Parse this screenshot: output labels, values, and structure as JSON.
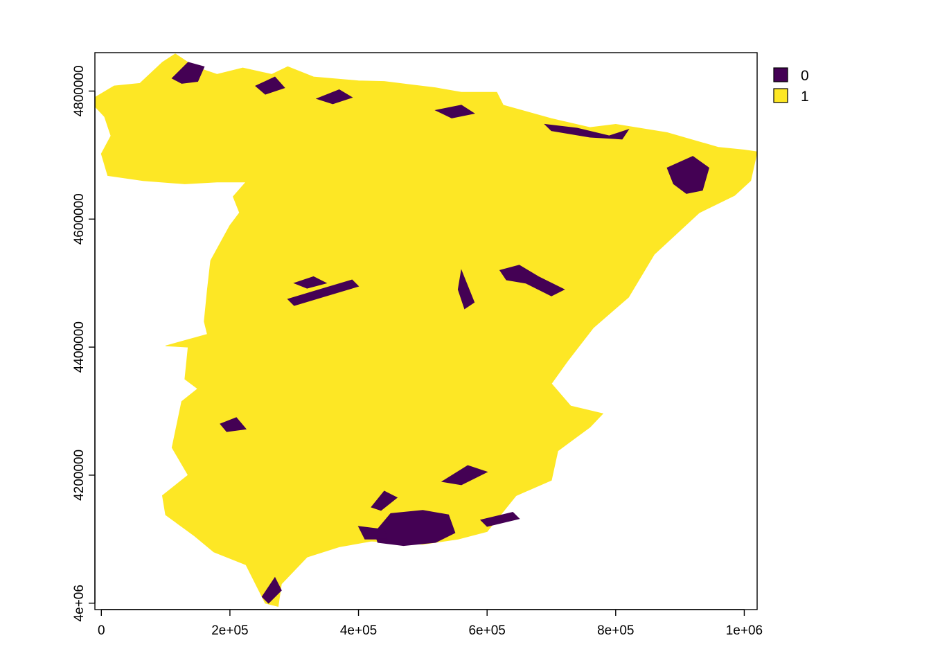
{
  "chart_data": {
    "type": "heatmap",
    "map_type": "binary-raster",
    "region": "Spain",
    "title": "",
    "xlabel": "",
    "ylabel": "",
    "xlim": [
      -10000,
      1020000
    ],
    "ylim": [
      3990000,
      4860000
    ],
    "grid": false,
    "legend_placement": "right",
    "x_ticks": [
      {
        "value": 0,
        "label": "0"
      },
      {
        "value": 200000,
        "label": "2e+05"
      },
      {
        "value": 400000,
        "label": "4e+05"
      },
      {
        "value": 600000,
        "label": "6e+05"
      },
      {
        "value": 800000,
        "label": "8e+05"
      },
      {
        "value": 1000000,
        "label": "1e+06"
      }
    ],
    "y_ticks": [
      {
        "value": 4000000,
        "label": "4e+06"
      },
      {
        "value": 4200000,
        "label": "4200000"
      },
      {
        "value": 4400000,
        "label": "4400000"
      },
      {
        "value": 4600000,
        "label": "4600000"
      },
      {
        "value": 4800000,
        "label": "4800000"
      }
    ],
    "legend": [
      {
        "label": "0",
        "color": "#440154"
      },
      {
        "label": "1",
        "color": "#fde725"
      }
    ],
    "land_outline": [
      [
        -10000,
        4790000
      ],
      [
        20000,
        4808000
      ],
      [
        60000,
        4812000
      ],
      [
        95000,
        4845000
      ],
      [
        115000,
        4858000
      ],
      [
        145000,
        4838000
      ],
      [
        180000,
        4826000
      ],
      [
        220000,
        4836000
      ],
      [
        265000,
        4826000
      ],
      [
        290000,
        4838000
      ],
      [
        330000,
        4822000
      ],
      [
        400000,
        4816000
      ],
      [
        440000,
        4815000
      ],
      [
        480000,
        4810000
      ],
      [
        520000,
        4805000
      ],
      [
        560000,
        4798000
      ],
      [
        615000,
        4798000
      ],
      [
        625000,
        4778000
      ],
      [
        700000,
        4757000
      ],
      [
        760000,
        4743000
      ],
      [
        800000,
        4748000
      ],
      [
        880000,
        4735000
      ],
      [
        915000,
        4725000
      ],
      [
        960000,
        4712000
      ],
      [
        1000000,
        4708000
      ],
      [
        1020000,
        4705000
      ],
      [
        1010000,
        4660000
      ],
      [
        985000,
        4637000
      ],
      [
        930000,
        4610000
      ],
      [
        860000,
        4545000
      ],
      [
        820000,
        4478000
      ],
      [
        765000,
        4430000
      ],
      [
        725000,
        4378000
      ],
      [
        700000,
        4343000
      ],
      [
        730000,
        4308000
      ],
      [
        780000,
        4296000
      ],
      [
        760000,
        4275000
      ],
      [
        710000,
        4238000
      ],
      [
        700000,
        4192000
      ],
      [
        645000,
        4168000
      ],
      [
        600000,
        4112000
      ],
      [
        555000,
        4100000
      ],
      [
        500000,
        4092000
      ],
      [
        420000,
        4097000
      ],
      [
        370000,
        4088000
      ],
      [
        320000,
        4072000
      ],
      [
        280000,
        4030000
      ],
      [
        275000,
        3995000
      ],
      [
        255000,
        4000000
      ],
      [
        225000,
        4060000
      ],
      [
        175000,
        4080000
      ],
      [
        145000,
        4105000
      ],
      [
        100000,
        4138000
      ],
      [
        95000,
        4168000
      ],
      [
        135000,
        4200000
      ],
      [
        110000,
        4243000
      ],
      [
        125000,
        4315000
      ],
      [
        150000,
        4335000
      ],
      [
        130000,
        4350000
      ],
      [
        135000,
        4400000
      ],
      [
        100000,
        4402000
      ],
      [
        165000,
        4420000
      ],
      [
        160000,
        4440000
      ],
      [
        165000,
        4490000
      ],
      [
        170000,
        4535000
      ],
      [
        200000,
        4590000
      ],
      [
        215000,
        4610000
      ],
      [
        205000,
        4635000
      ],
      [
        225000,
        4658000
      ],
      [
        180000,
        4658000
      ],
      [
        130000,
        4655000
      ],
      [
        65000,
        4660000
      ],
      [
        10000,
        4668000
      ],
      [
        0,
        4702000
      ],
      [
        15000,
        4730000
      ],
      [
        5000,
        4760000
      ],
      [
        -10000,
        4776000
      ]
    ],
    "class0_patches": [
      [
        [
          110000,
          4820000
        ],
        [
          135000,
          4845000
        ],
        [
          160000,
          4838000
        ],
        [
          150000,
          4815000
        ],
        [
          125000,
          4812000
        ]
      ],
      [
        [
          240000,
          4808000
        ],
        [
          270000,
          4822000
        ],
        [
          285000,
          4805000
        ],
        [
          255000,
          4795000
        ]
      ],
      [
        [
          335000,
          4788000
        ],
        [
          370000,
          4802000
        ],
        [
          390000,
          4790000
        ],
        [
          360000,
          4780000
        ]
      ],
      [
        [
          520000,
          4770000
        ],
        [
          560000,
          4778000
        ],
        [
          580000,
          4765000
        ],
        [
          545000,
          4758000
        ]
      ],
      [
        [
          690000,
          4748000
        ],
        [
          740000,
          4742000
        ],
        [
          790000,
          4730000
        ],
        [
          820000,
          4740000
        ],
        [
          810000,
          4725000
        ],
        [
          760000,
          4728000
        ],
        [
          700000,
          4738000
        ]
      ],
      [
        [
          880000,
          4680000
        ],
        [
          920000,
          4698000
        ],
        [
          945000,
          4680000
        ],
        [
          935000,
          4645000
        ],
        [
          910000,
          4640000
        ],
        [
          890000,
          4655000
        ]
      ],
      [
        [
          300000,
          4500000
        ],
        [
          330000,
          4510000
        ],
        [
          350000,
          4500000
        ],
        [
          320000,
          4492000
        ]
      ],
      [
        [
          290000,
          4475000
        ],
        [
          340000,
          4490000
        ],
        [
          390000,
          4505000
        ],
        [
          400000,
          4495000
        ],
        [
          350000,
          4480000
        ],
        [
          300000,
          4465000
        ]
      ],
      [
        [
          620000,
          4520000
        ],
        [
          650000,
          4528000
        ],
        [
          680000,
          4510000
        ],
        [
          720000,
          4490000
        ],
        [
          700000,
          4480000
        ],
        [
          660000,
          4500000
        ],
        [
          630000,
          4505000
        ]
      ],
      [
        [
          560000,
          4520000
        ],
        [
          570000,
          4495000
        ],
        [
          580000,
          4470000
        ],
        [
          565000,
          4460000
        ],
        [
          555000,
          4490000
        ]
      ],
      [
        [
          185000,
          4280000
        ],
        [
          210000,
          4290000
        ],
        [
          225000,
          4272000
        ],
        [
          195000,
          4268000
        ]
      ],
      [
        [
          425000,
          4110000
        ],
        [
          450000,
          4140000
        ],
        [
          500000,
          4145000
        ],
        [
          540000,
          4138000
        ],
        [
          550000,
          4110000
        ],
        [
          520000,
          4095000
        ],
        [
          470000,
          4090000
        ],
        [
          430000,
          4095000
        ]
      ],
      [
        [
          400000,
          4120000
        ],
        [
          440000,
          4115000
        ],
        [
          445000,
          4100000
        ],
        [
          410000,
          4100000
        ]
      ],
      [
        [
          420000,
          4150000
        ],
        [
          440000,
          4175000
        ],
        [
          460000,
          4165000
        ],
        [
          435000,
          4145000
        ]
      ],
      [
        [
          530000,
          4190000
        ],
        [
          570000,
          4215000
        ],
        [
          600000,
          4205000
        ],
        [
          560000,
          4185000
        ]
      ],
      [
        [
          590000,
          4130000
        ],
        [
          640000,
          4142000
        ],
        [
          650000,
          4132000
        ],
        [
          600000,
          4120000
        ]
      ],
      [
        [
          250000,
          4010000
        ],
        [
          270000,
          4040000
        ],
        [
          280000,
          4020000
        ],
        [
          260000,
          4000000
        ]
      ]
    ]
  }
}
